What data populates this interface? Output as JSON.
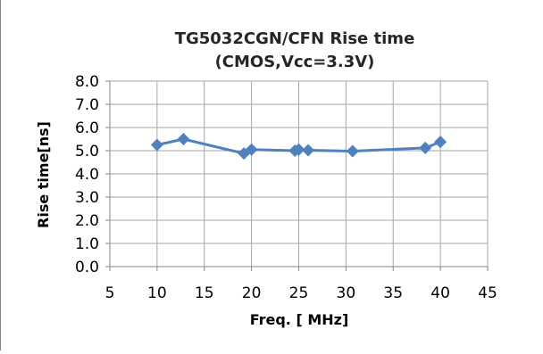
{
  "chart_data": {
    "type": "scatter",
    "title_line1": "TG5032CGN/CFN Rise time",
    "title_line2": "(CMOS,Vcc=3.3V)",
    "xlabel": "Freq. [ MHz]",
    "ylabel": "Rise time[ns]",
    "xlim": [
      5,
      45
    ],
    "ylim": [
      0,
      8
    ],
    "x_ticks": [
      "5",
      "10",
      "15",
      "20",
      "25",
      "30",
      "35",
      "40",
      "45"
    ],
    "y_ticks": [
      "0.0",
      "1.0",
      "2.0",
      "3.0",
      "4.0",
      "5.0",
      "6.0",
      "7.0",
      "8.0"
    ],
    "x_tick_values": [
      5,
      10,
      15,
      20,
      25,
      30,
      35,
      40,
      45
    ],
    "y_tick_values": [
      0,
      1,
      2,
      3,
      4,
      5,
      6,
      7,
      8
    ],
    "grid": true,
    "series": [
      {
        "color": "#4f81bd",
        "marker": "diamond",
        "x": [
          10.0,
          12.8,
          19.2,
          20.0,
          24.6,
          25.0,
          26.0,
          30.7,
          38.4,
          40.0
        ],
        "y": [
          5.25,
          5.5,
          4.88,
          5.05,
          5.0,
          5.05,
          5.02,
          4.98,
          5.12,
          5.38
        ]
      }
    ]
  }
}
